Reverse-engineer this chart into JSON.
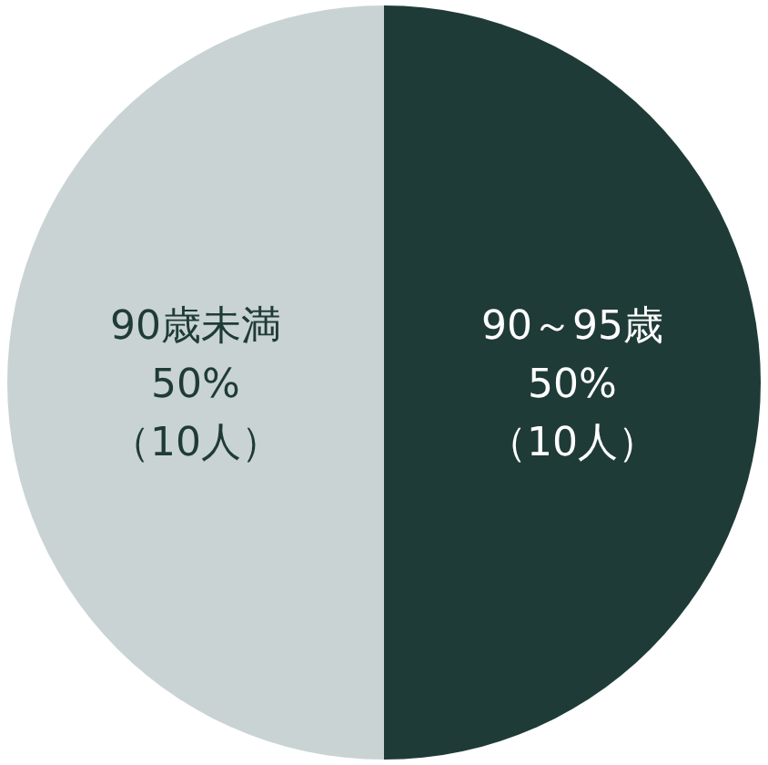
{
  "chart_data": {
    "type": "pie",
    "categories": [
      "90～95歳",
      "90歳未満"
    ],
    "values": [
      50,
      50
    ],
    "colors": [
      "#1f3b37",
      "#c9d3d4"
    ],
    "value_labels": [
      "50%\n（10人）",
      "50%\n（10人）"
    ]
  }
}
